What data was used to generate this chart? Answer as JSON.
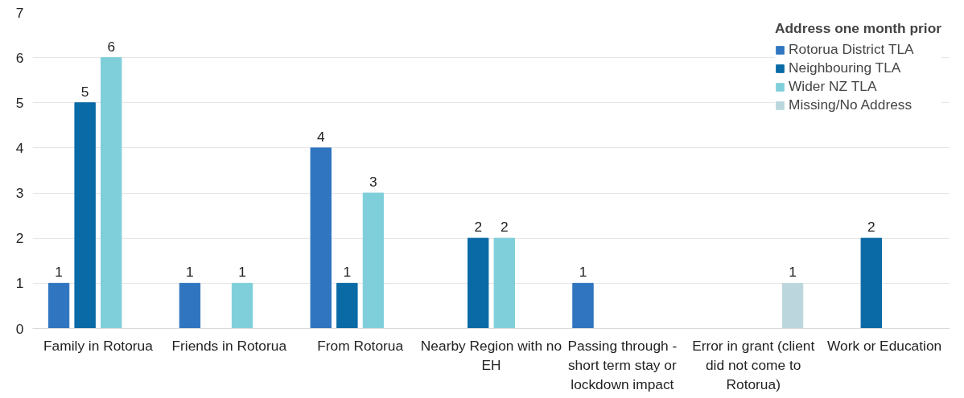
{
  "chart_data": {
    "type": "bar",
    "legend_title": "Address one month prior",
    "categories": [
      "Family in Rotorua",
      "Friends in Rotorua",
      "From Rotorua",
      "Nearby Region with no EH",
      "Passing through - short term stay or lockdown impact",
      "Error in grant (client did not come to Rotorua)",
      "Work or Education"
    ],
    "series": [
      {
        "name": "Rotorua District TLA",
        "color": "#2f75c0",
        "values": [
          1,
          1,
          4,
          null,
          1,
          null,
          null
        ]
      },
      {
        "name": "Neighbouring TLA",
        "color": "#0a6aa6",
        "values": [
          5,
          null,
          1,
          2,
          null,
          null,
          2
        ]
      },
      {
        "name": "Wider NZ TLA",
        "color": "#7fcfda",
        "values": [
          6,
          1,
          3,
          2,
          null,
          null,
          null
        ]
      },
      {
        "name": "Missing/No Address",
        "color": "#bcd6de",
        "values": [
          null,
          null,
          null,
          null,
          null,
          1,
          null
        ]
      }
    ],
    "ylim": [
      0,
      7
    ],
    "yticks": [
      0,
      1,
      2,
      3,
      4,
      5,
      6,
      7
    ],
    "grid": "y",
    "legend": "top right",
    "data_labels": true
  }
}
